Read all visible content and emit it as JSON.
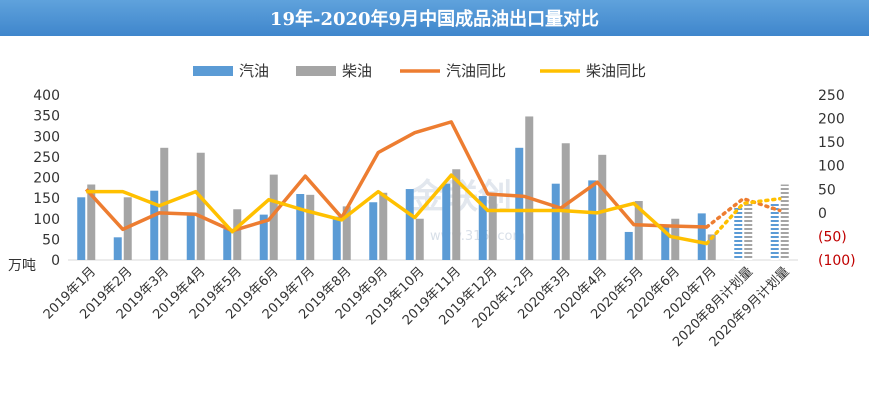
{
  "title": "19年-2020年9月中国成品油出口量对比",
  "watermark": {
    "brand": "金联创",
    "url": "www.315i.com"
  },
  "colors": {
    "gasoline": "#5b9bd5",
    "diesel": "#a5a5a5",
    "gasoline_yoy": "#ed7d31",
    "diesel_yoy": "#ffc000",
    "negative_axis": "#c00000",
    "title_bg": "#4a90d2"
  },
  "chart_data": {
    "type": "bar",
    "title": "19年-2020年9月中国成品油出口量对比",
    "left_axis_unit": "万吨",
    "left_axis": {
      "min": 0,
      "max": 400,
      "ticks": [
        "0",
        "50",
        "100",
        "150",
        "200",
        "250",
        "300",
        "350",
        "400"
      ]
    },
    "right_axis": {
      "min": -100,
      "max": 250,
      "ticks": [
        {
          "value": -100,
          "label": "(100)"
        },
        {
          "value": -50,
          "label": "(50)"
        },
        {
          "value": 0,
          "label": "0"
        },
        {
          "value": 50,
          "label": "50"
        },
        {
          "value": 100,
          "label": "100"
        },
        {
          "value": 150,
          "label": "150"
        },
        {
          "value": 200,
          "label": "200"
        },
        {
          "value": 250,
          "label": "250"
        }
      ]
    },
    "categories": [
      "2019年1月",
      "2019年2月",
      "2019年3月",
      "2019年4月",
      "2019年5月",
      "2019年6月",
      "2019年7月",
      "2019年8月",
      "2019年9月",
      "2019年10月",
      "2019年11月",
      "2019年12月",
      "2020年1-2月",
      "2020年3月",
      "2020年4月",
      "2020年5月",
      "2020年6月",
      "2020年7月",
      "2020年8月计划量",
      "2020年9月计划量"
    ],
    "planned_from_index": 18,
    "legend": {
      "position": "top",
      "entries": [
        "汽油",
        "柴油",
        "汽油同比",
        "柴油同比"
      ]
    },
    "series": [
      {
        "name": "汽油",
        "type": "bar",
        "axis": "left",
        "values": [
          152,
          55,
          168,
          112,
          75,
          110,
          160,
          105,
          140,
          172,
          185,
          155,
          272,
          185,
          193,
          68,
          80,
          113,
          130,
          140
        ]
      },
      {
        "name": "柴油",
        "type": "bar",
        "axis": "left",
        "values": [
          183,
          152,
          272,
          260,
          123,
          207,
          158,
          130,
          163,
          100,
          220,
          155,
          348,
          283,
          255,
          143,
          100,
          62,
          140,
          183
        ]
      },
      {
        "name": "汽油同比",
        "type": "line",
        "axis": "right",
        "values": [
          50,
          -35,
          0,
          -3,
          -38,
          -15,
          78,
          -10,
          128,
          170,
          193,
          40,
          35,
          10,
          65,
          -25,
          -28,
          -30,
          30,
          5
        ]
      },
      {
        "name": "柴油同比",
        "type": "line",
        "axis": "right",
        "values": [
          45,
          45,
          15,
          45,
          -40,
          28,
          5,
          -15,
          45,
          -10,
          80,
          5,
          5,
          5,
          0,
          20,
          -50,
          -65,
          20,
          30
        ]
      }
    ]
  }
}
